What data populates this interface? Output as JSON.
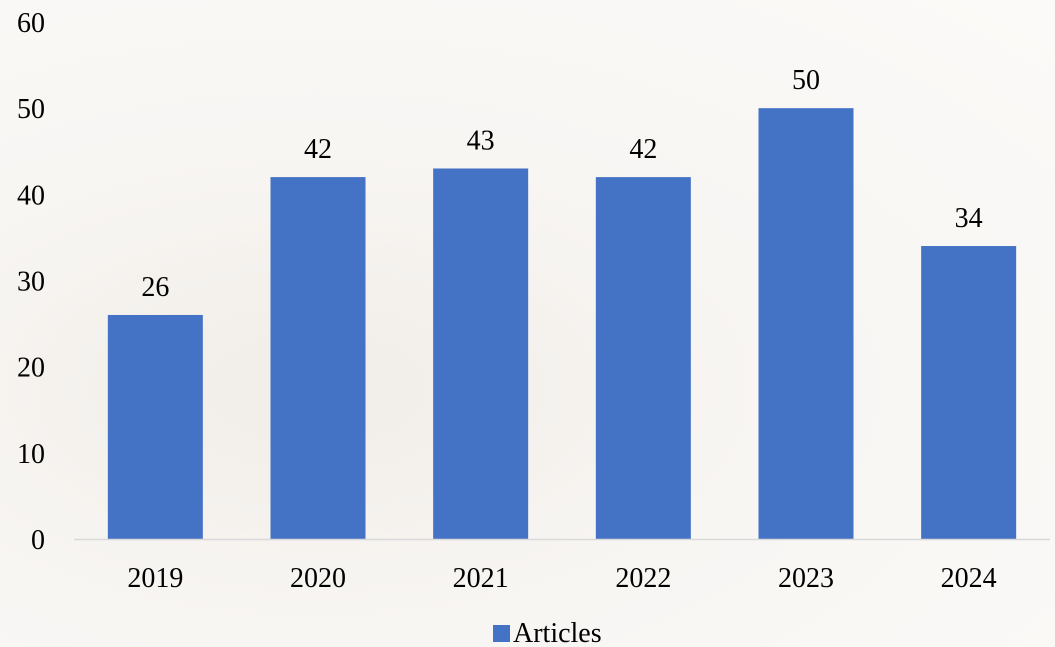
{
  "chart_data": {
    "type": "bar",
    "categories": [
      "2019",
      "2020",
      "2021",
      "2022",
      "2023",
      "2024"
    ],
    "series": [
      {
        "name": "Articles",
        "values": [
          26,
          42,
          43,
          42,
          50,
          34
        ]
      }
    ],
    "ylim": [
      0,
      60
    ],
    "yticks": [
      0,
      10,
      20,
      30,
      40,
      50,
      60
    ],
    "grid": false,
    "legend_position": "bottom",
    "data_labels": true,
    "colors": {
      "bar": "#4472c4",
      "axis": "#d9d9d9",
      "text": "#000000"
    }
  }
}
